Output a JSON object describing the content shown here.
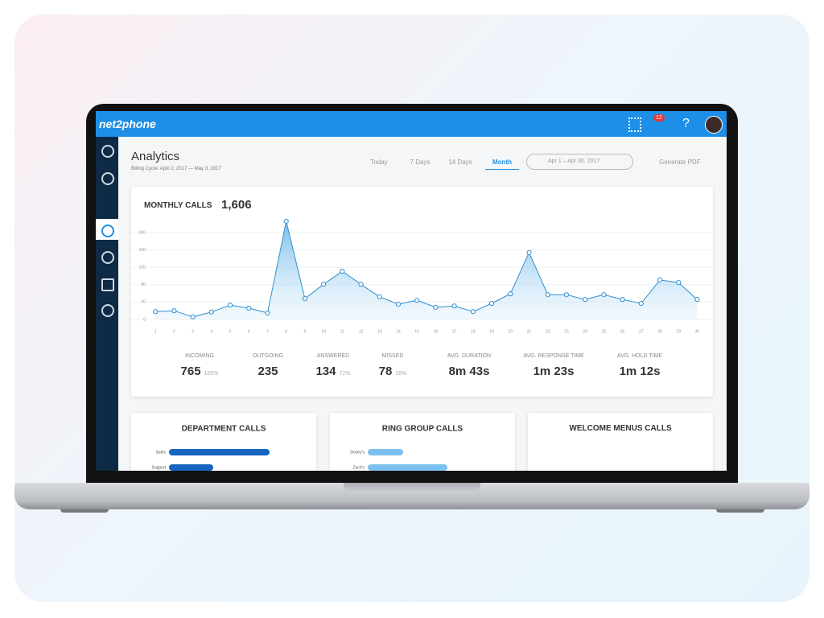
{
  "app": {
    "brand": "net2phone",
    "notification_count": "12",
    "help": "?"
  },
  "header": {
    "title": "Analytics",
    "subtitle": "Billing Cycle: April 2, 2017 — May 3, 2017"
  },
  "tabs": [
    "Today",
    "7 Days",
    "14 Days",
    "Month"
  ],
  "date_range": "Apr 1 – Apr 30, 2017",
  "generate_pdf": "Generate PDF",
  "summary": {
    "total": "1,606"
  },
  "stats": [
    {
      "label": "INCOMING",
      "value": "765",
      "pct": "100%"
    },
    {
      "label": "OUTGOING",
      "value": "235"
    },
    {
      "label": "ANSWERED",
      "value": "134",
      "pct": "72%"
    },
    {
      "label": "MISSED",
      "value": "78",
      "pct": "28%"
    },
    {
      "label": "AVG. DURATION",
      "value": "8m 43s"
    },
    {
      "label": "AVG. RESPONSE TIME",
      "value": "1m 23s"
    },
    {
      "label": "AVG. HOLD TIME",
      "value": "1m 12s"
    }
  ],
  "panels": [
    "WELCOME MENUS CALLS"
  ],
  "chart_data": [
    {
      "type": "line",
      "title": "MONTHLY CALLS",
      "color": "#2f8fd0",
      "grid": true,
      "x": [
        1,
        2,
        3,
        4,
        5,
        6,
        7,
        8,
        9,
        10,
        11,
        12,
        13,
        14,
        15,
        16,
        17,
        18,
        19,
        20,
        21,
        22,
        23,
        24,
        25,
        26,
        27,
        28,
        29,
        30
      ],
      "values": [
        18,
        20,
        6,
        17,
        33,
        26,
        15,
        226,
        48,
        81,
        111,
        81,
        52,
        35,
        44,
        28,
        31,
        18,
        37,
        59,
        154,
        57,
        57,
        46,
        57,
        46,
        37,
        91,
        85,
        46
      ],
      "xlim": [
        -0.3,
        30.8
      ],
      "xticks": [
        1,
        2,
        3,
        4,
        5,
        6,
        7,
        8,
        9,
        10,
        11,
        12,
        13,
        14,
        15,
        16,
        17,
        18,
        19,
        20,
        21,
        22,
        23,
        24,
        25,
        26,
        27,
        28,
        29,
        30
      ],
      "ylim": [
        0,
        230
      ],
      "yticks": [
        0,
        40,
        80,
        120,
        160,
        200
      ]
    },
    {
      "type": "hbar",
      "title": "DEPARTMENT CALLS",
      "color": "#1565c0",
      "categories": [
        "Sales",
        "Support"
      ],
      "values": [
        125,
        55
      ],
      "xlim": [
        0,
        150
      ]
    },
    {
      "type": "hbar",
      "title": "RING GROUP CALLS",
      "color": "#7cc0ef",
      "categories": [
        "Dovey's",
        "Zach's"
      ],
      "values": [
        44,
        99
      ],
      "xlim": [
        0,
        150
      ]
    }
  ]
}
